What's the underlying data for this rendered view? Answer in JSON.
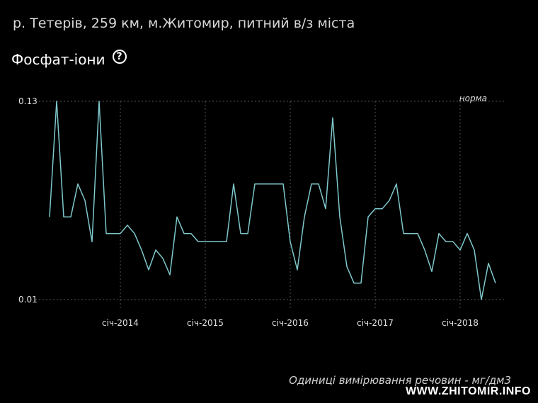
{
  "header": {
    "location": "р. Тетерів, 259 км, м.Житомир, питний в/з міста",
    "title": "Фосфат-іони",
    "help_icon": "question-circle-icon"
  },
  "chart_data": {
    "type": "line",
    "y_tick_labels": [
      "0.13",
      "0.01"
    ],
    "ylim": [
      0.01,
      0.13
    ],
    "x_tick_labels": [
      "січ-2014",
      "січ-2015",
      "січ-2016",
      "січ-2017",
      "січ-2018"
    ],
    "x_tick_dates": [
      "2014-01",
      "2015-01",
      "2016-01",
      "2017-01",
      "2018-01"
    ],
    "xlim": [
      "2013-02",
      "2018-07"
    ],
    "grid": true,
    "norm_label": "норма",
    "line_color": "#7fc8cc",
    "x": [
      "2013-03",
      "2013-04",
      "2013-05",
      "2013-06",
      "2013-07",
      "2013-08",
      "2013-09",
      "2013-10",
      "2013-11",
      "2013-12",
      "2014-01",
      "2014-02",
      "2014-03",
      "2014-04",
      "2014-05",
      "2014-06",
      "2014-07",
      "2014-08",
      "2014-09",
      "2014-10",
      "2014-11",
      "2014-12",
      "2015-01",
      "2015-02",
      "2015-03",
      "2015-04",
      "2015-05",
      "2015-06",
      "2015-07",
      "2015-08",
      "2015-09",
      "2015-10",
      "2015-11",
      "2015-12",
      "2016-01",
      "2016-02",
      "2016-03",
      "2016-04",
      "2016-05",
      "2016-06",
      "2016-07",
      "2016-08",
      "2016-09",
      "2016-10",
      "2016-11",
      "2016-12",
      "2017-01",
      "2017-02",
      "2017-03",
      "2017-04",
      "2017-05",
      "2017-06",
      "2017-07",
      "2017-08",
      "2017-09",
      "2017-10",
      "2017-11",
      "2017-12",
      "2018-01",
      "2018-02",
      "2018-03",
      "2018-04",
      "2018-05",
      "2018-06"
    ],
    "values": [
      0.06,
      0.13,
      0.06,
      0.06,
      0.08,
      0.07,
      0.045,
      0.13,
      0.05,
      0.05,
      0.05,
      0.055,
      0.05,
      0.04,
      0.028,
      0.04,
      0.035,
      0.025,
      0.06,
      0.05,
      0.05,
      0.045,
      0.045,
      0.045,
      0.045,
      0.045,
      0.08,
      0.05,
      0.05,
      0.08,
      0.08,
      0.08,
      0.08,
      0.08,
      0.045,
      0.028,
      0.06,
      0.08,
      0.08,
      0.065,
      0.12,
      0.06,
      0.03,
      0.02,
      0.02,
      0.06,
      0.065,
      0.065,
      0.07,
      0.08,
      0.05,
      0.05,
      0.05,
      0.04,
      0.027,
      0.05,
      0.045,
      0.045,
      0.04,
      0.05,
      0.04,
      0.01,
      0.032,
      0.02
    ]
  },
  "footer": {
    "units_note": "Одиниці вимірювання речовин - мг/дм3",
    "watermark": "WWW.ZHITOMIR.INFO"
  }
}
